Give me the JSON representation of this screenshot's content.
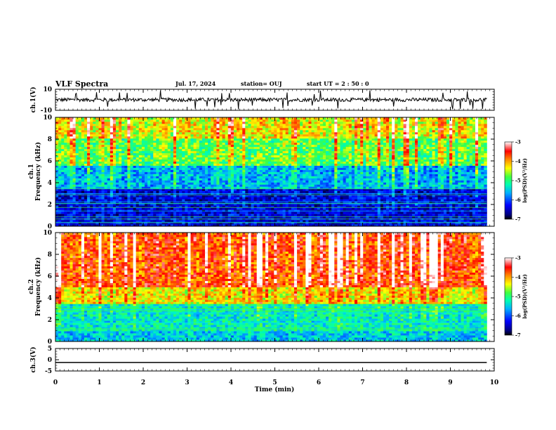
{
  "header": {
    "title": "VLF Spectra",
    "date": "Jul. 17, 2024",
    "station": "station= OUJ",
    "start": "start  UT =  2 : 50 : 0"
  },
  "chart_data": [
    {
      "type": "line",
      "panel": "ch1-waveform",
      "ylabel": "ch.1(V)",
      "ylim": [
        -10,
        10
      ],
      "yticks": [
        "10",
        "-10"
      ],
      "description_values": {
        "mean": 0,
        "typical_amplitude": 2.5
      },
      "color": "#000000"
    },
    {
      "type": "heatmap",
      "panel": "ch1-spectrogram",
      "ylabel": "ch.1\nFrequency (kHz)",
      "ylabel_top": "ch.1",
      "ylabel_bottom": "Frequency (kHz)",
      "ylim": [
        0,
        10
      ],
      "yticks": [
        "0",
        "2",
        "4",
        "6",
        "8",
        "10"
      ],
      "colorbar": {
        "label": "log(PSD)(V²/Hz)",
        "range": [
          -7,
          -3
        ],
        "ticks": [
          "-3",
          "-4",
          "-5",
          "-6",
          "-7"
        ]
      },
      "bands_khz": [
        {
          "from": 0,
          "to": 3.5,
          "level": -6.4
        },
        {
          "from": 3.5,
          "to": 5.5,
          "level": -5.6
        },
        {
          "from": 5.5,
          "to": 8,
          "level": -4.8
        },
        {
          "from": 8,
          "to": 10,
          "level": -4.3
        }
      ]
    },
    {
      "type": "heatmap",
      "panel": "ch2-spectrogram",
      "ylabel_top": "ch.2",
      "ylabel_bottom": "Frequency (kHz)",
      "ylim": [
        0,
        10
      ],
      "yticks": [
        "0",
        "2",
        "4",
        "6",
        "8",
        "10"
      ],
      "colorbar": {
        "label": "log(PSD)(V²/Hz)",
        "range": [
          -7,
          -3
        ],
        "ticks": [
          "-3",
          "-4",
          "-5",
          "-6",
          "-7"
        ]
      },
      "bands_khz": [
        {
          "from": 0,
          "to": 1,
          "level": -5.5
        },
        {
          "from": 1,
          "to": 3.5,
          "level": -5.3
        },
        {
          "from": 3.5,
          "to": 5,
          "level": -4.3
        },
        {
          "from": 5,
          "to": 10,
          "level": -3.7
        }
      ]
    },
    {
      "type": "line",
      "panel": "ch3-waveform",
      "ylabel": "ch.3(V)",
      "ylim": [
        -5,
        5
      ],
      "yticks": [
        "5",
        "0",
        "-5"
      ],
      "x": [
        0,
        9.83
      ],
      "y": [
        -1.2,
        -1.2
      ],
      "color": "#000000"
    }
  ],
  "xaxis": {
    "label": "Time (min)",
    "ticks": [
      "0",
      "1",
      "2",
      "3",
      "4",
      "5",
      "6",
      "7",
      "8",
      "9",
      "10"
    ],
    "xlim": [
      0,
      10
    ],
    "data_end": 9.83
  },
  "colors": {
    "colormap": [
      "#00007f",
      "#0000ff",
      "#007fff",
      "#00ffff",
      "#7fff7f",
      "#ffff00",
      "#ff7f00",
      "#ff0000",
      "#7f0000"
    ]
  }
}
